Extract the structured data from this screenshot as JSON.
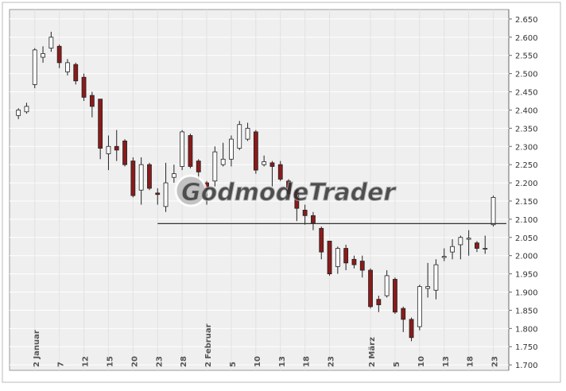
{
  "chart_data": {
    "type": "candlestick",
    "watermark": "GodmodeTrader",
    "categories": [
      null,
      null,
      "2 Januar",
      null,
      null,
      "7",
      null,
      null,
      "12",
      null,
      null,
      "15",
      null,
      null,
      "20",
      null,
      null,
      "23",
      null,
      null,
      "28",
      null,
      null,
      "2 Februar",
      null,
      null,
      "5",
      null,
      null,
      "10",
      null,
      null,
      "13",
      null,
      null,
      "18",
      null,
      null,
      "23",
      null,
      null,
      null,
      null,
      "2 März",
      null,
      null,
      "5",
      null,
      null,
      "10",
      null,
      null,
      "13",
      null,
      null,
      "18",
      null,
      null,
      "23"
    ],
    "open": [
      2385,
      2395,
      2470,
      2545,
      2570,
      2575,
      2505,
      2525,
      2490,
      2440,
      2430,
      2280,
      2300,
      2315,
      2260,
      2180,
      2250,
      2172,
      2135,
      2215,
      2245,
      2330,
      2260,
      2200,
      2205,
      2250,
      2265,
      2295,
      2320,
      2340,
      2250,
      2255,
      2250,
      2205,
      2180,
      2125,
      2110,
      2075,
      2040,
      1970,
      2020,
      1990,
      1985,
      1960,
      1880,
      1890,
      1935,
      1855,
      1825,
      1805,
      1910,
      1905,
      1995,
      2010,
      2030,
      2045,
      2035,
      2018,
      2085
    ],
    "high": [
      2405,
      2420,
      2570,
      2575,
      2615,
      2580,
      2540,
      2530,
      2500,
      2450,
      2430,
      2330,
      2345,
      2320,
      2270,
      2270,
      2255,
      2185,
      2255,
      2250,
      2345,
      2335,
      2265,
      2205,
      2300,
      2310,
      2330,
      2370,
      2365,
      2345,
      2275,
      2260,
      2260,
      2210,
      2185,
      2140,
      2120,
      2080,
      2040,
      2025,
      2030,
      2000,
      2000,
      1965,
      1890,
      1960,
      1940,
      1860,
      1830,
      1920,
      1980,
      1990,
      2020,
      2045,
      2055,
      2070,
      2040,
      2055,
      2165
    ],
    "low": [
      2375,
      2390,
      2460,
      2530,
      2560,
      2515,
      2495,
      2470,
      2425,
      2380,
      2265,
      2235,
      2260,
      2245,
      2160,
      2140,
      2180,
      2140,
      2120,
      2200,
      2235,
      2240,
      2210,
      2140,
      2190,
      2245,
      2245,
      2290,
      2315,
      2225,
      2245,
      2190,
      2205,
      2160,
      2095,
      2085,
      2070,
      1990,
      1945,
      1950,
      1960,
      1965,
      1940,
      1855,
      1845,
      1885,
      1840,
      1790,
      1765,
      1795,
      1885,
      1880,
      1985,
      1990,
      1990,
      2000,
      2010,
      2005,
      2080
    ],
    "close": [
      2400,
      2410,
      2565,
      2555,
      2600,
      2530,
      2530,
      2480,
      2435,
      2410,
      2295,
      2300,
      2290,
      2250,
      2165,
      2250,
      2185,
      2168,
      2200,
      2225,
      2340,
      2245,
      2230,
      2185,
      2285,
      2265,
      2320,
      2360,
      2350,
      2235,
      2258,
      2245,
      2210,
      2170,
      2130,
      2110,
      2090,
      2010,
      1950,
      2020,
      1980,
      1975,
      1960,
      1860,
      1865,
      1945,
      1845,
      1825,
      1775,
      1915,
      1915,
      1975,
      1998,
      2025,
      2050,
      2048,
      2020,
      2020,
      2160
    ],
    "up_color": "#ffffff",
    "down_color": "#8b1a1a",
    "support_line": 2088,
    "ylim": [
      1685,
      2676
    ],
    "yticks": [
      {
        "value": 1700,
        "label": "1.700"
      },
      {
        "value": 1750,
        "label": "1.750"
      },
      {
        "value": 1800,
        "label": "1.800"
      },
      {
        "value": 1850,
        "label": "1.850"
      },
      {
        "value": 1900,
        "label": "1.900"
      },
      {
        "value": 1950,
        "label": "1.950"
      },
      {
        "value": 2000,
        "label": "2.000"
      },
      {
        "value": 2050,
        "label": "2.050"
      },
      {
        "value": 2100,
        "label": "2.100"
      },
      {
        "value": 2150,
        "label": "2.150"
      },
      {
        "value": 2200,
        "label": "2.200"
      },
      {
        "value": 2250,
        "label": "2.250"
      },
      {
        "value": 2300,
        "label": "2.300"
      },
      {
        "value": 2350,
        "label": "2.350"
      },
      {
        "value": 2400,
        "label": "2.400"
      },
      {
        "value": 2450,
        "label": "2.450"
      },
      {
        "value": 2500,
        "label": "2.500"
      },
      {
        "value": 2550,
        "label": "2.550"
      },
      {
        "value": 2600,
        "label": "2.600"
      },
      {
        "value": 2650,
        "label": "2.650"
      }
    ],
    "grid": true
  }
}
